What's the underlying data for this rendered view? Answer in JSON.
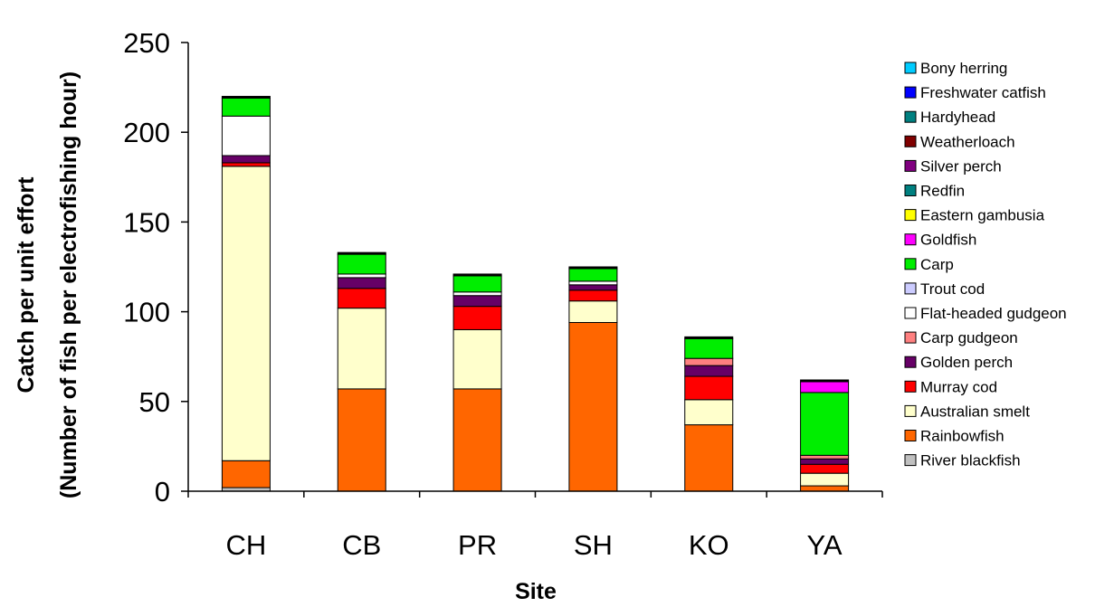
{
  "chart_data": {
    "type": "bar",
    "stacked": true,
    "title": "",
    "xlabel": "Site",
    "ylabel_line1": "Catch per unit effort",
    "ylabel_line2": "(Number of fish per electrofishing hour)",
    "ylim": [
      0,
      250
    ],
    "yticks": [
      0,
      50,
      100,
      150,
      200,
      250
    ],
    "grid": false,
    "legend_position": "right",
    "categories": [
      "CH",
      "CB",
      "PR",
      "SH",
      "KO",
      "YA"
    ],
    "series": [
      {
        "name": "River blackfish",
        "color": "#c0c0c0",
        "values": [
          2,
          0,
          0,
          0,
          0,
          0
        ]
      },
      {
        "name": "Rainbowfish",
        "color": "#ff6600",
        "values": [
          15,
          57,
          57,
          94,
          37,
          3
        ]
      },
      {
        "name": "Australian smelt",
        "color": "#ffffcc",
        "values": [
          164,
          45,
          33,
          12,
          14,
          7
        ]
      },
      {
        "name": "Murray cod",
        "color": "#ff0000",
        "values": [
          2,
          11,
          13,
          6,
          13,
          5
        ]
      },
      {
        "name": "Golden perch",
        "color": "#660066",
        "values": [
          4,
          6,
          6,
          3,
          6,
          3
        ]
      },
      {
        "name": "Carp gudgeon",
        "color": "#ff8080",
        "values": [
          0,
          0,
          0,
          0,
          4,
          2
        ]
      },
      {
        "name": "Flat-headed gudgeon",
        "color": "#ffffff",
        "values": [
          22,
          2,
          2,
          2,
          0,
          0
        ]
      },
      {
        "name": "Trout cod",
        "color": "#ccccff",
        "values": [
          0,
          0,
          0,
          0,
          0,
          0
        ]
      },
      {
        "name": "Carp",
        "color": "#00ee00",
        "values": [
          10,
          11,
          9,
          7,
          11,
          35
        ]
      },
      {
        "name": "Goldfish",
        "color": "#ff00ff",
        "values": [
          0,
          0,
          0,
          0,
          0,
          6
        ]
      },
      {
        "name": "Eastern gambusia",
        "color": "#ffff00",
        "values": [
          0,
          0,
          0,
          0,
          0,
          0
        ]
      },
      {
        "name": "Redfin",
        "color": "#008080",
        "values": [
          0,
          0,
          0,
          0,
          0,
          0
        ]
      },
      {
        "name": "Silver perch",
        "color": "#800080",
        "values": [
          0,
          0,
          0,
          0,
          0,
          0
        ]
      },
      {
        "name": "Weatherloach",
        "color": "#800000",
        "values": [
          0,
          0,
          0,
          0,
          0,
          0
        ]
      },
      {
        "name": "Hardyhead",
        "color": "#008080",
        "values": [
          0,
          0,
          0,
          0,
          0,
          0
        ]
      },
      {
        "name": "Freshwater catfish",
        "color": "#0000ff",
        "values": [
          0,
          0,
          0,
          0,
          0,
          0
        ]
      },
      {
        "name": "Bony herring",
        "color": "#00ccff",
        "values": [
          0,
          0,
          0,
          0,
          0,
          0
        ]
      }
    ],
    "legend_order": [
      "Bony herring",
      "Freshwater catfish",
      "Hardyhead",
      "Weatherloach",
      "Silver perch",
      "Redfin",
      "Eastern gambusia",
      "Goldfish",
      "Carp",
      "Trout cod",
      "Flat-headed gudgeon",
      "Carp gudgeon",
      "Golden perch",
      "Murray cod",
      "Australian smelt",
      "Rainbowfish",
      "River blackfish"
    ],
    "top_cap": {
      "color": "#000000",
      "values": [
        1,
        1,
        1,
        1,
        1,
        1
      ]
    }
  }
}
